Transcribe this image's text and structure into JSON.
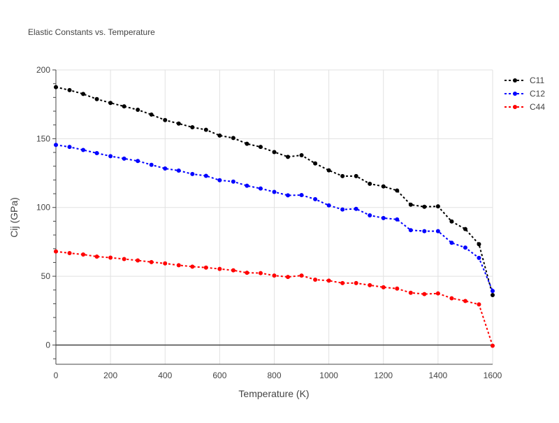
{
  "chart_data": {
    "type": "line",
    "title": "Elastic Constants vs. Temperature",
    "xlabel": "Temperature (K)",
    "ylabel": "Cij (GPa)",
    "xlim": [
      0,
      1600
    ],
    "ylim": [
      -14,
      200
    ],
    "x_ticks": [
      0,
      200,
      400,
      600,
      800,
      1000,
      1200,
      1400,
      1600
    ],
    "y_ticks": [
      0,
      50,
      100,
      150,
      200
    ],
    "grid": true,
    "legend_position": "top-right",
    "x": [
      0,
      50,
      100,
      150,
      200,
      250,
      300,
      350,
      400,
      450,
      500,
      550,
      600,
      650,
      700,
      750,
      800,
      850,
      900,
      950,
      1000,
      1050,
      1100,
      1150,
      1200,
      1250,
      1300,
      1350,
      1400,
      1450,
      1500,
      1550,
      1600
    ],
    "series": [
      {
        "name": "C11",
        "color": "#000000",
        "values": [
          187.5,
          185.3,
          182.5,
          178.8,
          176.0,
          173.5,
          171.0,
          167.5,
          163.5,
          161.0,
          158.3,
          156.5,
          152.3,
          150.5,
          146.3,
          144.0,
          140.3,
          136.8,
          138.0,
          132.0,
          127.0,
          122.8,
          122.8,
          117.2,
          115.3,
          112.3,
          102.0,
          100.5,
          100.8,
          89.8,
          84.3,
          73.3,
          36.3
        ]
      },
      {
        "name": "C12",
        "color": "#0000ff",
        "values": [
          145.5,
          144.0,
          141.8,
          139.5,
          137.3,
          135.5,
          133.8,
          131.0,
          128.3,
          126.8,
          124.3,
          123.0,
          119.8,
          118.8,
          115.8,
          113.8,
          111.3,
          108.8,
          109.0,
          106.0,
          101.5,
          98.5,
          99.0,
          94.3,
          92.3,
          91.3,
          83.5,
          82.8,
          82.8,
          74.3,
          70.8,
          63.3,
          39.3
        ]
      },
      {
        "name": "C44",
        "color": "#ff0000",
        "values": [
          68.0,
          66.8,
          65.8,
          64.3,
          63.5,
          62.5,
          61.5,
          60.3,
          59.3,
          58.0,
          57.0,
          56.3,
          55.3,
          54.3,
          52.5,
          52.3,
          50.5,
          49.5,
          50.5,
          47.5,
          46.8,
          45.0,
          45.0,
          43.5,
          42.0,
          41.0,
          38.0,
          37.0,
          37.5,
          34.0,
          32.0,
          29.5,
          -0.5
        ]
      }
    ]
  }
}
